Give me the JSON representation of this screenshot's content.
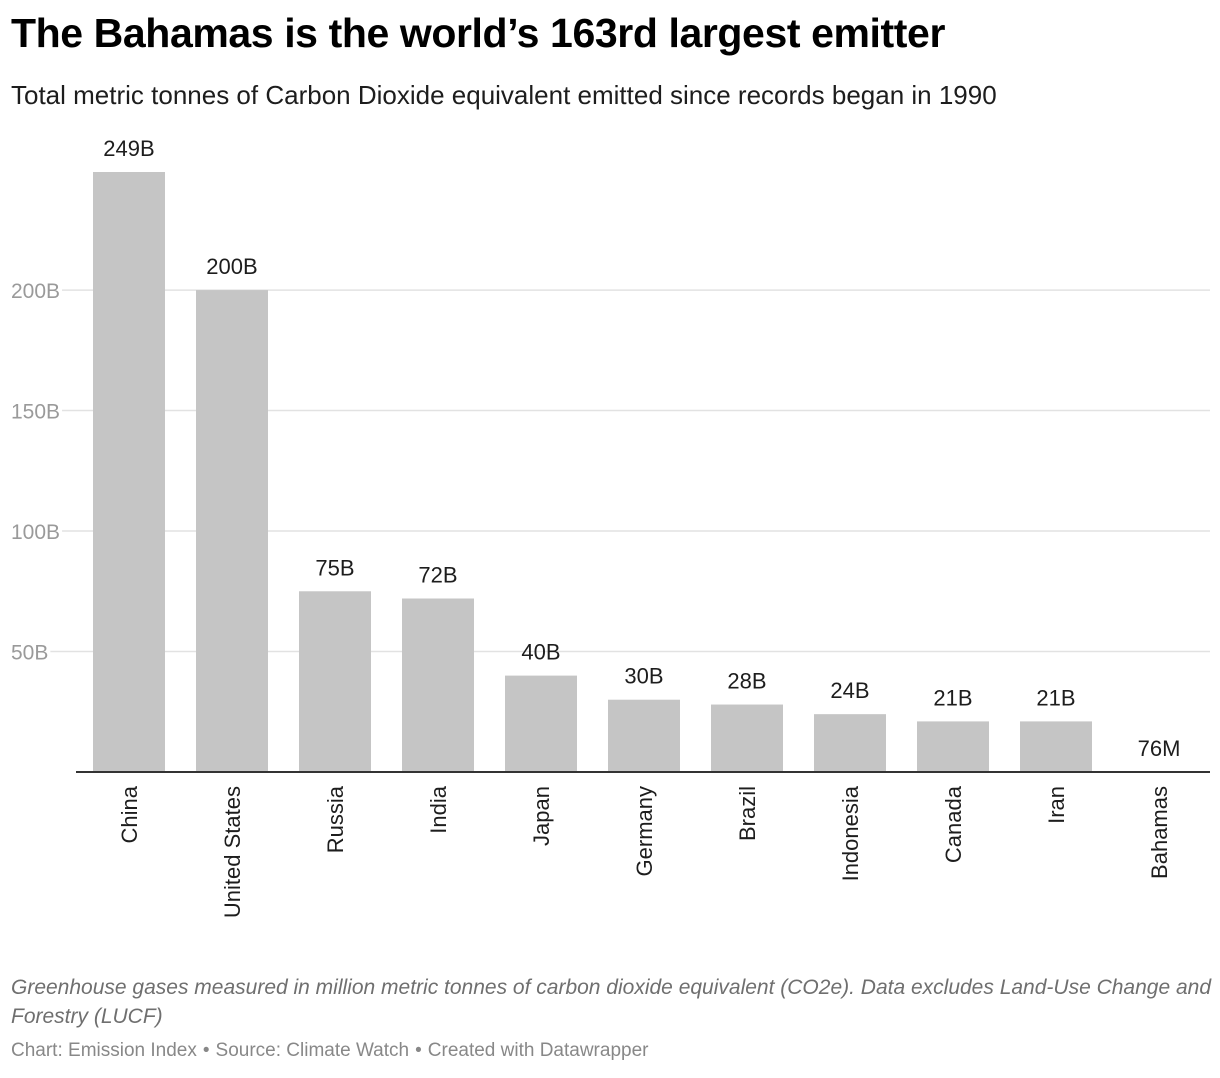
{
  "header": {
    "title": "The Bahamas is the world’s 163rd largest emitter",
    "subtitle": "Total metric tonnes of Carbon Dioxide equivalent emitted since records began in 1990"
  },
  "chart_data": {
    "type": "bar",
    "title": "The Bahamas is the world’s 163rd largest emitter",
    "subtitle": "Total metric tonnes of Carbon Dioxide equivalent emitted since records began in 1990",
    "categories": [
      "China",
      "United States",
      "Russia",
      "India",
      "Japan",
      "Germany",
      "Brazil",
      "Indonesia",
      "Canada",
      "Iran",
      "Bahamas"
    ],
    "values": [
      249000000000,
      200000000000,
      75000000000,
      72000000000,
      40000000000,
      30000000000,
      28000000000,
      24000000000,
      21000000000,
      21000000000,
      76000000
    ],
    "value_labels": [
      "249B",
      "200B",
      "75B",
      "72B",
      "40B",
      "30B",
      "28B",
      "24B",
      "21B",
      "21B",
      "76M"
    ],
    "ylim": [
      0,
      249000000000
    ],
    "yticks": [
      50000000000,
      100000000000,
      150000000000,
      200000000000
    ],
    "ytick_labels": [
      "50B",
      "100B",
      "150B",
      "200B"
    ],
    "grid": true,
    "xlabel": "",
    "ylabel": "",
    "colors": {
      "bar": "#c5c5c5",
      "grid": "#e2e2e2",
      "axis": "#333333",
      "tick_label": "#9a9a9a",
      "value_label": "#1d1d1d"
    }
  },
  "footer": {
    "notes": "Greenhouse gases measured in million metric tonnes of carbon dioxide equivalent (CO2e). Data excludes Land-Use Change and Forestry (LUCF)",
    "credit": "Chart: Emission Index",
    "source": "Source: Climate Watch",
    "tool": "Created with Datawrapper",
    "separator": "•"
  }
}
